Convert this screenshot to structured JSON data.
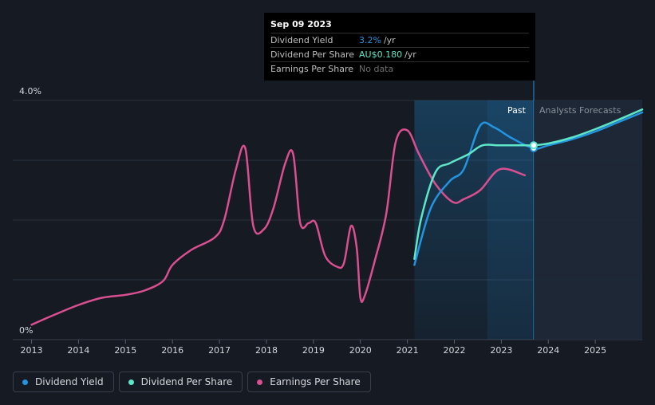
{
  "chart_data": {
    "type": "line",
    "title": "",
    "xlabel": "",
    "ylabel": "",
    "ylim": [
      0,
      4.0
    ],
    "y_tick_labels": [
      "0%",
      "4.0%"
    ],
    "x_tick_labels": [
      "2013",
      "2014",
      "2015",
      "2016",
      "2017",
      "2018",
      "2019",
      "2020",
      "2021",
      "2022",
      "2023",
      "2024",
      "2025"
    ],
    "x_range": [
      2012.6,
      2026.0
    ],
    "past_label": "Past",
    "forecast_label": "Analysts Forecasts",
    "cursor_x": 2023.69,
    "series": [
      {
        "name": "Earnings Per Share",
        "color": "#d94f90",
        "points": [
          [
            2013.0,
            0.25
          ],
          [
            2013.5,
            0.42
          ],
          [
            2014.0,
            0.58
          ],
          [
            2014.5,
            0.7
          ],
          [
            2015.0,
            0.75
          ],
          [
            2015.4,
            0.82
          ],
          [
            2015.8,
            0.98
          ],
          [
            2016.0,
            1.25
          ],
          [
            2016.4,
            1.5
          ],
          [
            2016.9,
            1.71
          ],
          [
            2017.1,
            2.0
          ],
          [
            2017.35,
            2.85
          ],
          [
            2017.55,
            3.2
          ],
          [
            2017.72,
            1.9
          ],
          [
            2017.95,
            1.85
          ],
          [
            2018.15,
            2.2
          ],
          [
            2018.4,
            2.95
          ],
          [
            2018.57,
            3.1
          ],
          [
            2018.72,
            1.95
          ],
          [
            2018.9,
            1.95
          ],
          [
            2019.05,
            1.95
          ],
          [
            2019.25,
            1.4
          ],
          [
            2019.5,
            1.22
          ],
          [
            2019.65,
            1.28
          ],
          [
            2019.8,
            1.9
          ],
          [
            2019.92,
            1.55
          ],
          [
            2020.0,
            0.7
          ],
          [
            2020.1,
            0.75
          ],
          [
            2020.3,
            1.3
          ],
          [
            2020.55,
            2.1
          ],
          [
            2020.75,
            3.3
          ],
          [
            2021.0,
            3.5
          ],
          [
            2021.25,
            3.1
          ],
          [
            2021.6,
            2.6
          ],
          [
            2021.97,
            2.3
          ],
          [
            2022.2,
            2.35
          ],
          [
            2022.55,
            2.5
          ],
          [
            2022.97,
            2.85
          ],
          [
            2023.5,
            2.75
          ]
        ]
      },
      {
        "name": "Dividend Yield",
        "color": "#2394df",
        "points": [
          [
            2021.15,
            1.25
          ],
          [
            2021.5,
            2.2
          ],
          [
            2021.9,
            2.65
          ],
          [
            2022.2,
            2.85
          ],
          [
            2022.55,
            3.58
          ],
          [
            2022.85,
            3.55
          ],
          [
            2023.2,
            3.38
          ],
          [
            2023.69,
            3.2
          ],
          [
            2024.0,
            3.25
          ],
          [
            2024.5,
            3.35
          ],
          [
            2025.0,
            3.48
          ],
          [
            2025.5,
            3.64
          ],
          [
            2026.0,
            3.8
          ]
        ]
      },
      {
        "name": "Dividend Per Share",
        "color": "#5fe6c8",
        "points": [
          [
            2021.15,
            1.35
          ],
          [
            2021.3,
            2.05
          ],
          [
            2021.6,
            2.8
          ],
          [
            2021.9,
            2.95
          ],
          [
            2022.3,
            3.1
          ],
          [
            2022.6,
            3.25
          ],
          [
            2022.97,
            3.25
          ],
          [
            2023.5,
            3.25
          ],
          [
            2023.69,
            3.25
          ],
          [
            2024.0,
            3.28
          ],
          [
            2024.5,
            3.38
          ],
          [
            2025.0,
            3.52
          ],
          [
            2025.5,
            3.68
          ],
          [
            2026.0,
            3.85
          ]
        ]
      }
    ]
  },
  "tooltip": {
    "date": "Sep 09 2023",
    "rows": [
      {
        "label": "Dividend Yield",
        "value": "3.2%",
        "unit": "/yr",
        "value_color": "#2394df"
      },
      {
        "label": "Dividend Per Share",
        "value": "AU$0.180",
        "unit": "/yr",
        "value_color": "#5fe6c8"
      },
      {
        "label": "Earnings Per Share",
        "value": "No data",
        "unit": ""
      }
    ]
  },
  "legend": [
    {
      "label": "Dividend Yield",
      "color": "#2394df"
    },
    {
      "label": "Dividend Per Share",
      "color": "#5fe6c8"
    },
    {
      "label": "Earnings Per Share",
      "color": "#d94f90"
    }
  ]
}
